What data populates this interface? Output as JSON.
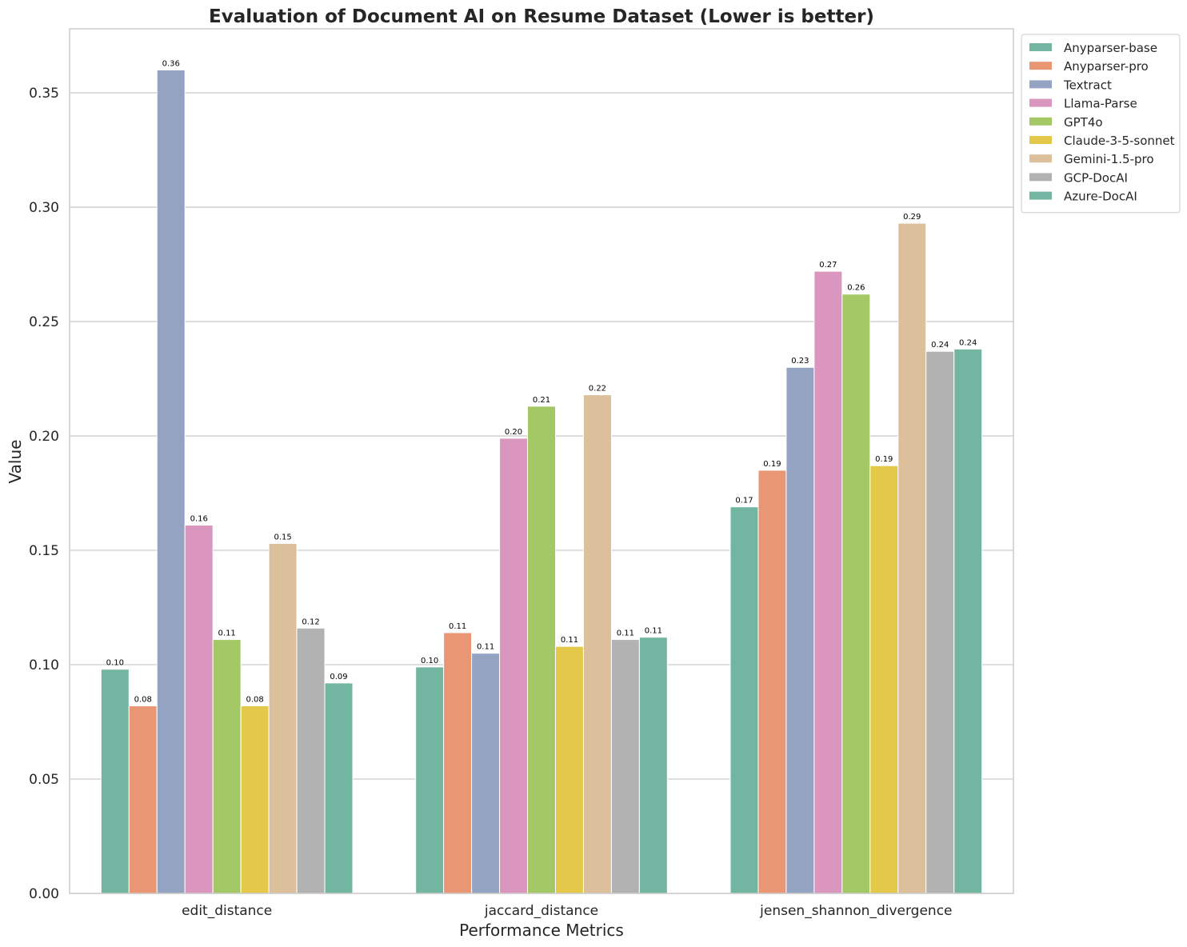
{
  "chart_data": {
    "type": "bar",
    "title": "Evaluation of Document AI on Resume Dataset (Lower is better)",
    "xlabel": "Performance Metrics",
    "ylabel": "Value",
    "ylim": [
      0,
      0.378
    ],
    "yticks": [
      0.0,
      0.05,
      0.1,
      0.15,
      0.2,
      0.25,
      0.3,
      0.35
    ],
    "ytick_labels": [
      "0.00",
      "0.05",
      "0.10",
      "0.15",
      "0.20",
      "0.25",
      "0.30",
      "0.35"
    ],
    "grid": "y",
    "legend_position": "upper right, outside plot",
    "categories": [
      "edit_distance",
      "jaccard_distance",
      "jensen_shannon_divergence"
    ],
    "series": [
      {
        "name": "Anyparser-base",
        "color": "#72b6a1",
        "values": [
          0.098,
          0.099,
          0.169
        ],
        "labels": [
          "0.10",
          "0.10",
          "0.17"
        ]
      },
      {
        "name": "Anyparser-pro",
        "color": "#e99675",
        "values": [
          0.082,
          0.114,
          0.185
        ],
        "labels": [
          "0.08",
          "0.11",
          "0.19"
        ]
      },
      {
        "name": "Textract",
        "color": "#95a3c3",
        "values": [
          0.36,
          0.105,
          0.23
        ],
        "labels": [
          "0.36",
          "0.11",
          "0.23"
        ]
      },
      {
        "name": "Llama-Parse",
        "color": "#db96c0",
        "values": [
          0.161,
          0.199,
          0.272
        ],
        "labels": [
          "0.16",
          "0.20",
          "0.27"
        ]
      },
      {
        "name": "GPT4o",
        "color": "#a4c865",
        "values": [
          0.111,
          0.213,
          0.262
        ],
        "labels": [
          "0.11",
          "0.21",
          "0.26"
        ]
      },
      {
        "name": "Claude-3-5-sonnet",
        "color": "#e3c84a",
        "values": [
          0.082,
          0.108,
          0.187
        ],
        "labels": [
          "0.08",
          "0.11",
          "0.19"
        ]
      },
      {
        "name": "Gemini-1.5-pro",
        "color": "#dbc09b",
        "values": [
          0.153,
          0.218,
          0.293
        ],
        "labels": [
          "0.15",
          "0.22",
          "0.29"
        ]
      },
      {
        "name": "GCP-DocAI",
        "color": "#b2b2b2",
        "values": [
          0.116,
          0.111,
          0.237
        ],
        "labels": [
          "0.12",
          "0.11",
          "0.24"
        ]
      },
      {
        "name": "Azure-DocAI",
        "color": "#72b6a1",
        "values": [
          0.092,
          0.112,
          0.238
        ],
        "labels": [
          "0.09",
          "0.11",
          "0.24"
        ]
      }
    ]
  }
}
